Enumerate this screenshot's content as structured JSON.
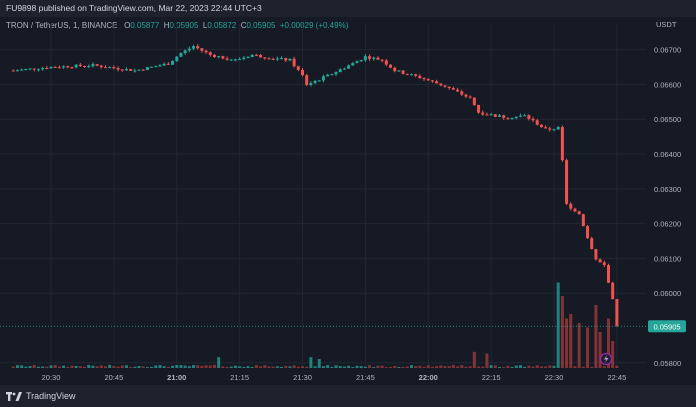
{
  "header": {
    "publisher_line": "FU9898 published on TradingView.com, Mar 22, 2023 22:44 UTC+3"
  },
  "legend": {
    "symbol": "TRON / TetherUS, 1, BINANCE",
    "open_label": "O",
    "open_value": "0.05877",
    "high_label": "H",
    "high_value": "0.05905",
    "low_label": "L",
    "low_value": "0.05872",
    "close_label": "C",
    "close_value": "0.05905",
    "change": "+0.00029 (+0.49%)"
  },
  "footer": {
    "brand": "TradingView"
  },
  "colors": {
    "up": "#26a69a",
    "down": "#ef5350",
    "up_volume": "#26a69a",
    "down_volume": "#a83c3c",
    "background": "#161a25",
    "grid": "#222631",
    "price_tag": "#26a69a"
  },
  "chart_data": {
    "type": "candlestick",
    "currency_label": "USDT",
    "price_axis": {
      "range": [
        0.05785,
        0.06745
      ],
      "ticks": [
        "0.06700",
        "0.06600",
        "0.06500",
        "0.06400",
        "0.06300",
        "0.06200",
        "0.06100",
        "0.06000",
        "0.05800"
      ]
    },
    "last_price": "0.05905",
    "time_axis": {
      "ticks": [
        {
          "label": "20:30",
          "minute": 0
        },
        {
          "label": "20:45",
          "minute": 15
        },
        {
          "label": "21:00",
          "minute": 30
        },
        {
          "label": "21:15",
          "minute": 45
        },
        {
          "label": "21:30",
          "minute": 60
        },
        {
          "label": "21:45",
          "minute": 75
        },
        {
          "label": "22:00",
          "minute": 90
        },
        {
          "label": "22:15",
          "minute": 105
        },
        {
          "label": "22:30",
          "minute": 120
        },
        {
          "label": "22:45",
          "minute": 135
        }
      ],
      "first_candle_minute": -9,
      "last_candle_minute": 135
    },
    "close_path": [
      [
        -9,
        0.0664
      ],
      [
        0,
        0.0665
      ],
      [
        10,
        0.06655
      ],
      [
        20,
        0.0664
      ],
      [
        28,
        0.0666
      ],
      [
        31,
        0.0669
      ],
      [
        34,
        0.0671
      ],
      [
        38,
        0.06685
      ],
      [
        44,
        0.0667
      ],
      [
        48,
        0.06685
      ],
      [
        53,
        0.06675
      ],
      [
        57,
        0.0667
      ],
      [
        60,
        0.06625
      ],
      [
        61,
        0.066
      ],
      [
        66,
        0.06625
      ],
      [
        72,
        0.0666
      ],
      [
        75,
        0.0668
      ],
      [
        79,
        0.0667
      ],
      [
        82,
        0.0664
      ],
      [
        88,
        0.0662
      ],
      [
        94,
        0.06595
      ],
      [
        100,
        0.0656
      ],
      [
        102,
        0.0652
      ],
      [
        106,
        0.0651
      ],
      [
        109,
        0.06505
      ],
      [
        113,
        0.0651
      ],
      [
        115,
        0.06495
      ],
      [
        118,
        0.0647
      ],
      [
        121,
        0.06475
      ],
      [
        122,
        0.0638
      ],
      [
        123,
        0.06255
      ],
      [
        126,
        0.0623
      ],
      [
        128,
        0.0616
      ],
      [
        130,
        0.061
      ],
      [
        132,
        0.0608
      ],
      [
        134,
        0.0598
      ],
      [
        135,
        0.05905
      ]
    ],
    "volume_spikes": [
      [
        40,
        0.12
      ],
      [
        62,
        0.12
      ],
      [
        64,
        0.1
      ],
      [
        101,
        0.18
      ],
      [
        104,
        0.16
      ],
      [
        121,
        0.95
      ],
      [
        122,
        0.8
      ],
      [
        123,
        0.55
      ],
      [
        124,
        0.6
      ],
      [
        126,
        0.5
      ],
      [
        128,
        0.45
      ],
      [
        130,
        0.7
      ],
      [
        131,
        0.4
      ],
      [
        133,
        0.55
      ],
      [
        134,
        0.3
      ]
    ]
  }
}
